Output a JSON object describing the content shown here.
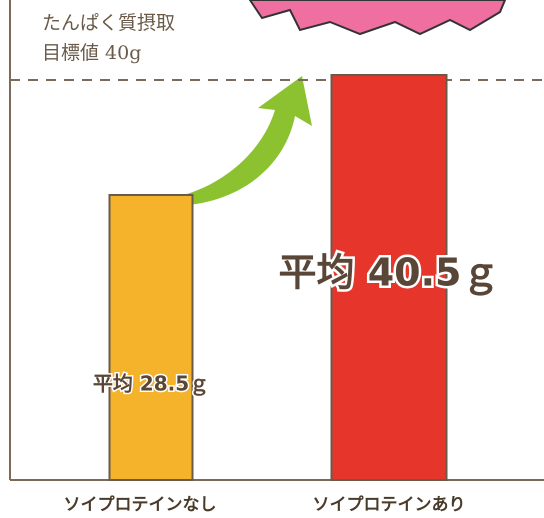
{
  "chart_data": {
    "type": "bar",
    "categories": [
      "ソイプロテインなし",
      "ソイプロテインあり"
    ],
    "values": [
      28.5,
      40.5
    ],
    "value_labels": [
      "平均 28.5ｇ",
      "平均 40.5ｇ"
    ],
    "colors": [
      "#f4b32a",
      "#e6362b"
    ],
    "ylim": [
      0,
      48
    ],
    "reference_line": {
      "value": 40,
      "label": [
        "たんぱく質摂取",
        "目標値 40g"
      ]
    }
  }
}
